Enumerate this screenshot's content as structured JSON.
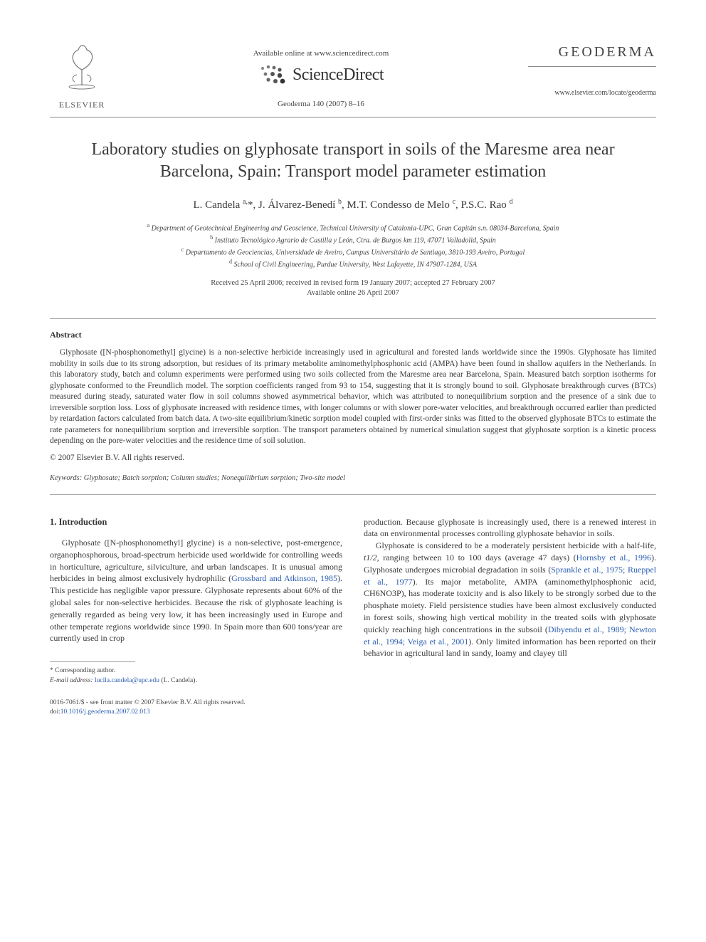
{
  "header": {
    "available_line": "Available online at www.sciencedirect.com",
    "sciencedirect": "ScienceDirect",
    "journal_ref": "Geoderma 140 (2007) 8–16",
    "elsevier": "ELSEVIER",
    "journal_name": "GEODERMA",
    "journal_url": "www.elsevier.com/locate/geoderma"
  },
  "title": "Laboratory studies on glyphosate transport in soils of the Maresme area near Barcelona, Spain: Transport model parameter estimation",
  "authors_html": "L. Candela <sup>a,</sup>*, J. Álvarez-Benedí <sup>b</sup>, M.T. Condesso de Melo <sup>c</sup>, P.S.C. Rao <sup>d</sup>",
  "affiliations": [
    {
      "sup": "a",
      "text": "Department of Geotechnical Engineering and Geoscience, Technical University of Catalonia-UPC, Gran Capitán s.n. 08034-Barcelona, Spain"
    },
    {
      "sup": "b",
      "text": "Instituto Tecnológico Agrario de Castilla y León, Ctra. de Burgos km 119, 47071 Valladolid, Spain"
    },
    {
      "sup": "c",
      "text": "Departamento de Geociencias, Universidade de Aveiro, Campus Universitário de Santiago, 3810-193 Aveiro, Portugal"
    },
    {
      "sup": "d",
      "text": "School of Civil Engineering, Purdue University, West Lafayette, IN 47907-1284, USA"
    }
  ],
  "dates": {
    "line1": "Received 25 April 2006; received in revised form 19 January 2007; accepted 27 February 2007",
    "line2": "Available online 26 April 2007"
  },
  "abstract": {
    "heading": "Abstract",
    "body": "Glyphosate ([N-phosphonomethyl] glycine) is a non-selective herbicide increasingly used in agricultural and forested lands worldwide since the 1990s. Glyphosate has limited mobility in soils due to its strong adsorption, but residues of its primary metabolite aminomethylphosphonic acid (AMPA) have been found in shallow aquifers in the Netherlands. In this laboratory study, batch and column experiments were performed using two soils collected from the Maresme area near Barcelona, Spain. Measured batch sorption isotherms for glyphosate conformed to the Freundlich model. The sorption coefficients ranged from 93 to 154, suggesting that it is strongly bound to soil. Glyphosate breakthrough curves (BTCs) measured during steady, saturated water flow in soil columns showed asymmetrical behavior, which was attributed to nonequilibrium sorption and the presence of a sink due to irreversible sorption loss. Loss of glyphosate increased with residence times, with longer columns or with slower pore-water velocities, and breakthrough occurred earlier than predicted by retardation factors calculated from batch data. A two-site equilibrium/kinetic sorption model coupled with first-order sinks was fitted to the observed glyphosate BTCs to estimate the rate parameters for nonequilibrium sorption and irreversible sorption. The transport parameters obtained by numerical simulation suggest that glyphosate sorption is a kinetic process depending on the pore-water velocities and the residence time of soil solution.",
    "copyright": "© 2007 Elsevier B.V. All rights reserved."
  },
  "keywords": {
    "label": "Keywords:",
    "list": "Glyphosate; Batch sorption; Column studies; Nonequilibrium sorption; Two-site model"
  },
  "section": {
    "heading": "1. Introduction",
    "col1_p1_a": "Glyphosate ([N-phosphonomethyl] glycine) is a non-selective, post-emergence, organophosphorous, broad-spectrum herbicide used worldwide for controlling weeds in horticulture, agriculture, silviculture, and urban landscapes. It is unusual among herbicides in being almost exclusively hydrophilic (",
    "col1_ref1": "Grossbard and Atkinson, 1985",
    "col1_p1_b": "). This pesticide has negligible vapor pressure. Glyphosate represents about 60% of the global sales for non-selective herbicides. Because the risk of glyphosate leaching is generally regarded as being very low, it has been increasingly used in Europe and other temperate regions worldwide since 1990. In Spain more than 600 tons/year are currently used in crop",
    "col2_p1": "production. Because glyphosate is increasingly used, there is a renewed interest in data on environmental processes controlling glyphosate behavior in soils.",
    "col2_p2_a": "Glyphosate is considered to be a moderately persistent herbicide with a half-life, ",
    "col2_t12": "t1/2",
    "col2_p2_b": ", ranging between 10 to 100 days (average 47 days) (",
    "col2_ref2": "Hornsby et al., 1996",
    "col2_p2_c": "). Glyphosate undergoes microbial degradation in soils (",
    "col2_ref3": "Sprankle et al., 1975; Rueppel et al., 1977",
    "col2_p2_d": "). Its major metabolite, AMPA (aminomethylphosphonic acid, CH6NO3P), has moderate toxicity and is also likely to be strongly sorbed due to the phosphate moiety. Field persistence studies have been almost exclusively conducted in forest soils, showing high vertical mobility in the treated soils with glyphosate quickly reaching high concentrations in the subsoil (",
    "col2_ref4": "Dibyendu et al., 1989; Newton et al., 1994; Veiga et al., 2001",
    "col2_p2_e": "). Only limited information has been reported on their behavior in agricultural land in sandy, loamy and clayey till"
  },
  "footnote": {
    "star": "* Corresponding author.",
    "email_label": "E-mail address:",
    "email": "lucila.candela@upc.edu",
    "email_who": "(L. Candela)."
  },
  "bottom": {
    "line1": "0016-7061/$ - see front matter © 2007 Elsevier B.V. All rights reserved.",
    "doi_label": "doi:",
    "doi": "10.1016/j.geoderma.2007.02.013"
  },
  "colors": {
    "link": "#2a5db0",
    "text": "#3a3a3a",
    "muted": "#444444",
    "rule": "#888888"
  }
}
